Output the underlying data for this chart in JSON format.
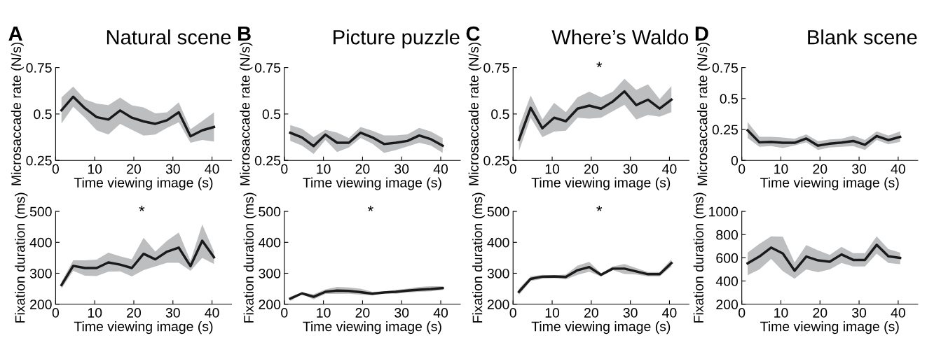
{
  "chart_data": [
    {
      "type": "line",
      "title": "Natural scene",
      "xlabel": "Time viewing image (s)",
      "ylabel": "Microsaccade rate (N/s)",
      "annotations": [
        "A"
      ],
      "x": [
        1.5,
        4.5,
        7.5,
        10.5,
        13.5,
        16.5,
        19.5,
        22.5,
        25.5,
        28.5,
        31.5,
        34.5,
        37.5,
        40.5
      ],
      "xlim": [
        0,
        45
      ],
      "xticks": [
        0,
        10,
        20,
        30,
        40
      ],
      "ylim": [
        0.25,
        0.75
      ],
      "yticks": [
        0.25,
        0.5,
        0.75
      ],
      "grid": false,
      "legend": false,
      "series": [
        {
          "color": "#1a1a1a",
          "values": [
            0.52,
            0.593,
            0.531,
            0.483,
            0.47,
            0.519,
            0.48,
            0.46,
            0.447,
            0.466,
            0.509,
            0.38,
            0.412,
            0.43
          ],
          "upper": [
            0.589,
            0.648,
            0.579,
            0.556,
            0.548,
            0.588,
            0.547,
            0.535,
            0.503,
            0.509,
            0.563,
            0.418,
            0.462,
            0.509
          ],
          "lower": [
            0.449,
            0.539,
            0.48,
            0.412,
            0.389,
            0.447,
            0.415,
            0.384,
            0.389,
            0.425,
            0.455,
            0.345,
            0.36,
            0.352
          ]
        }
      ]
    },
    {
      "type": "line",
      "title": "Picture puzzle",
      "xlabel": "Time viewing image (s)",
      "ylabel": "Microsaccade rate (N/s)",
      "annotations": [
        "B"
      ],
      "x": [
        1.5,
        4.5,
        7.5,
        10.5,
        13.5,
        16.5,
        19.5,
        22.5,
        25.5,
        28.5,
        31.5,
        34.5,
        37.5,
        40.5
      ],
      "xlim": [
        0,
        45
      ],
      "xticks": [
        0,
        10,
        20,
        30,
        40
      ],
      "ylim": [
        0.25,
        0.75
      ],
      "yticks": [
        0.25,
        0.5,
        0.75
      ],
      "grid": false,
      "legend": false,
      "series": [
        {
          "color": "#1a1a1a",
          "values": [
            0.399,
            0.374,
            0.327,
            0.389,
            0.345,
            0.345,
            0.399,
            0.374,
            0.338,
            0.345,
            0.355,
            0.384,
            0.364,
            0.329
          ],
          "upper": [
            0.44,
            0.42,
            0.375,
            0.415,
            0.4,
            0.37,
            0.43,
            0.41,
            0.385,
            0.385,
            0.39,
            0.425,
            0.405,
            0.37
          ],
          "lower": [
            0.355,
            0.33,
            0.285,
            0.36,
            0.295,
            0.32,
            0.37,
            0.34,
            0.29,
            0.305,
            0.325,
            0.345,
            0.33,
            0.29
          ]
        }
      ]
    },
    {
      "type": "line",
      "title": "Where’s Waldo",
      "xlabel": "Time viewing image (s)",
      "ylabel": "Microsaccade rate (N/s)",
      "annotations": [
        "C",
        "*"
      ],
      "x": [
        1.5,
        4.5,
        7.5,
        10.5,
        13.5,
        16.5,
        19.5,
        22.5,
        25.5,
        28.5,
        31.5,
        34.5,
        37.5,
        40.5
      ],
      "xlim": [
        0,
        45
      ],
      "xticks": [
        0,
        10,
        20,
        30,
        40
      ],
      "ylim": [
        0.25,
        0.75
      ],
      "yticks": [
        0.25,
        0.5,
        0.75
      ],
      "grid": false,
      "legend": false,
      "series": [
        {
          "color": "#1a1a1a",
          "values": [
            0.361,
            0.533,
            0.423,
            0.48,
            0.461,
            0.529,
            0.545,
            0.529,
            0.567,
            0.622,
            0.548,
            0.577,
            0.529,
            0.577
          ],
          "upper": [
            0.43,
            0.6,
            0.47,
            0.56,
            0.51,
            0.59,
            0.62,
            0.59,
            0.62,
            0.69,
            0.63,
            0.66,
            0.58,
            0.65
          ],
          "lower": [
            0.3,
            0.48,
            0.375,
            0.405,
            0.41,
            0.48,
            0.475,
            0.48,
            0.515,
            0.55,
            0.47,
            0.495,
            0.485,
            0.51
          ]
        }
      ]
    },
    {
      "type": "line",
      "title": "Blank scene",
      "xlabel": "Time viewing image (s)",
      "ylabel": "Microsaccade rate (N/s)",
      "annotations": [
        "D"
      ],
      "x": [
        1.5,
        4.5,
        7.5,
        10.5,
        13.5,
        16.5,
        19.5,
        22.5,
        25.5,
        28.5,
        31.5,
        34.5,
        37.5,
        40.5
      ],
      "xlim": [
        0,
        45
      ],
      "xticks": [
        0,
        10,
        20,
        30,
        40
      ],
      "ylim": [
        0,
        0.75
      ],
      "yticks": [
        0,
        0.25,
        0.5,
        0.75
      ],
      "grid": false,
      "legend": false,
      "series": [
        {
          "color": "#1a1a1a",
          "values": [
            0.243,
            0.146,
            0.15,
            0.142,
            0.142,
            0.177,
            0.119,
            0.135,
            0.144,
            0.157,
            0.126,
            0.197,
            0.164,
            0.19
          ],
          "upper": [
            0.31,
            0.19,
            0.19,
            0.185,
            0.175,
            0.21,
            0.155,
            0.17,
            0.175,
            0.2,
            0.165,
            0.235,
            0.2,
            0.235
          ],
          "lower": [
            0.18,
            0.11,
            0.115,
            0.1,
            0.12,
            0.145,
            0.085,
            0.105,
            0.11,
            0.115,
            0.085,
            0.165,
            0.13,
            0.15
          ]
        }
      ]
    },
    {
      "type": "line",
      "xlabel": "Time viewing image (s)",
      "ylabel": "Fixation duration (ms)",
      "annotations": [
        "*"
      ],
      "x": [
        1.5,
        4.5,
        7.5,
        10.5,
        13.5,
        16.5,
        19.5,
        22.5,
        25.5,
        28.5,
        31.5,
        34.5,
        37.5,
        40.5
      ],
      "xlim": [
        0,
        45
      ],
      "xticks": [
        0,
        10,
        20,
        30,
        40
      ],
      "ylim": [
        200,
        500
      ],
      "yticks": [
        200,
        300,
        400,
        500
      ],
      "grid": false,
      "legend": false,
      "series": [
        {
          "color": "#1a1a1a",
          "values": [
            262,
            324,
            317,
            317,
            335,
            328,
            317,
            363,
            345,
            370,
            383,
            323,
            405,
            352
          ],
          "upper": [
            272,
            342,
            342,
            344,
            367,
            355,
            345,
            415,
            370,
            405,
            432,
            340,
            458,
            370
          ],
          "lower": [
            250,
            308,
            292,
            291,
            305,
            306,
            290,
            310,
            322,
            334,
            334,
            308,
            350,
            330
          ]
        }
      ]
    },
    {
      "type": "line",
      "xlabel": "Time viewing image (s)",
      "ylabel": "Fixation duration (ms)",
      "annotations": [
        "*"
      ],
      "x": [
        1.5,
        4.5,
        7.5,
        10.5,
        13.5,
        16.5,
        19.5,
        22.5,
        25.5,
        28.5,
        31.5,
        34.5,
        37.5,
        40.5
      ],
      "xlim": [
        0,
        45
      ],
      "xticks": [
        0,
        10,
        20,
        30,
        40
      ],
      "ylim": [
        200,
        500
      ],
      "yticks": [
        200,
        300,
        400,
        500
      ],
      "grid": false,
      "legend": false,
      "series": [
        {
          "color": "#1a1a1a",
          "values": [
            218,
            235,
            224,
            240,
            244,
            243,
            239,
            234,
            238,
            240,
            244,
            247,
            249,
            252
          ],
          "upper": [
            224,
            238,
            232,
            248,
            256,
            254,
            250,
            240,
            242,
            246,
            250,
            256,
            258,
            258
          ],
          "lower": [
            210,
            232,
            216,
            233,
            233,
            234,
            231,
            229,
            236,
            234,
            238,
            240,
            242,
            246
          ]
        }
      ]
    },
    {
      "type": "line",
      "xlabel": "Time viewing image (s)",
      "ylabel": "Fixation duration (ms)",
      "annotations": [
        "*"
      ],
      "x": [
        1.5,
        4.5,
        7.5,
        10.5,
        13.5,
        16.5,
        19.5,
        22.5,
        25.5,
        28.5,
        31.5,
        34.5,
        37.5,
        40.5
      ],
      "xlim": [
        0,
        45
      ],
      "xticks": [
        0,
        10,
        20,
        30,
        40
      ],
      "ylim": [
        200,
        500
      ],
      "yticks": [
        200,
        300,
        400,
        500
      ],
      "grid": false,
      "legend": false,
      "series": [
        {
          "color": "#1a1a1a",
          "values": [
            240,
            282,
            289,
            290,
            288,
            310,
            320,
            295,
            315,
            315,
            306,
            297,
            297,
            333
          ],
          "upper": [
            250,
            290,
            295,
            293,
            296,
            325,
            337,
            300,
            322,
            330,
            317,
            304,
            304,
            345
          ],
          "lower": [
            230,
            275,
            282,
            284,
            280,
            295,
            305,
            290,
            310,
            298,
            296,
            290,
            290,
            322
          ]
        }
      ]
    },
    {
      "type": "line",
      "xlabel": "Time viewing image (s)",
      "ylabel": "Fixation duration (ms)",
      "x": [
        1.5,
        4.5,
        7.5,
        10.5,
        13.5,
        16.5,
        19.5,
        22.5,
        25.5,
        28.5,
        31.5,
        34.5,
        37.5,
        40.5
      ],
      "xlim": [
        0,
        45
      ],
      "xticks": [
        0,
        10,
        20,
        30,
        40
      ],
      "ylim": [
        200,
        1000
      ],
      "yticks": [
        200,
        400,
        600,
        800,
        1000
      ],
      "grid": false,
      "legend": false,
      "series": [
        {
          "color": "#1a1a1a",
          "values": [
            552,
            611,
            688,
            637,
            489,
            611,
            578,
            566,
            629,
            582,
            582,
            712,
            613,
            599
          ],
          "upper": [
            645,
            720,
            785,
            782,
            560,
            710,
            665,
            625,
            695,
            640,
            640,
            785,
            675,
            645
          ],
          "lower": [
            450,
            500,
            590,
            485,
            420,
            500,
            475,
            500,
            555,
            525,
            525,
            635,
            555,
            545
          ]
        }
      ]
    }
  ]
}
